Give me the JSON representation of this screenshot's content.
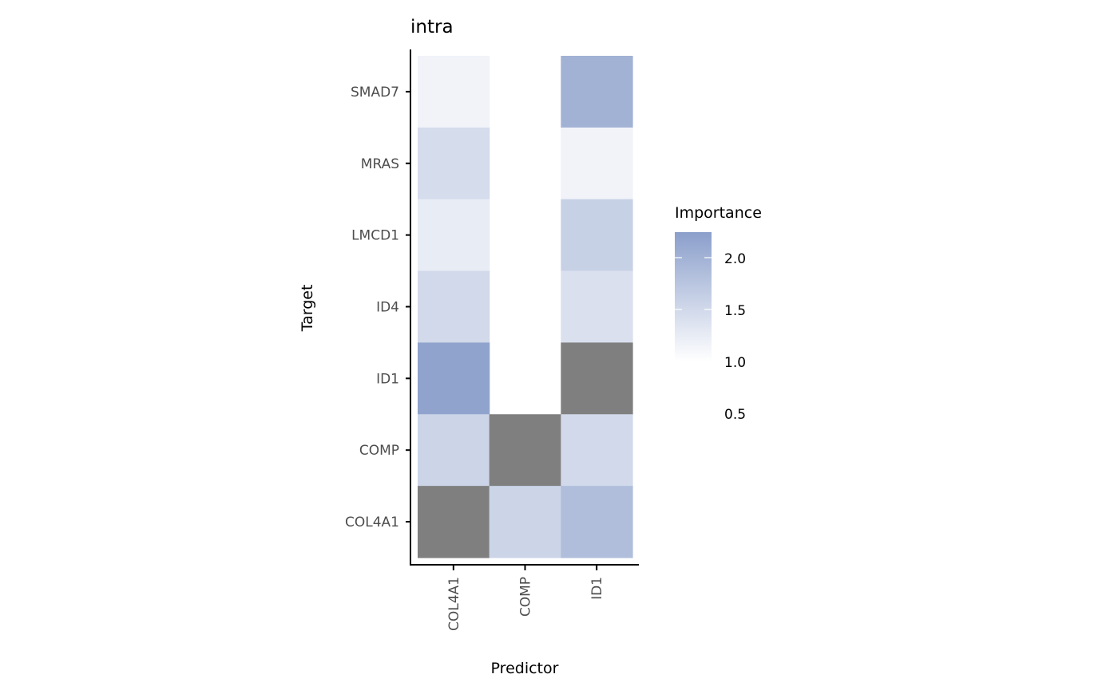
{
  "chart_data": {
    "type": "heatmap",
    "title": "intra",
    "xlabel": "Predictor",
    "ylabel": "Target",
    "x_categories": [
      "COL4A1",
      "COMP",
      "ID1"
    ],
    "y_categories": [
      "COL4A1",
      "COMP",
      "ID1",
      "ID4",
      "LMCD1",
      "MRAS",
      "SMAD7"
    ],
    "cells": [
      {
        "x": "COL4A1",
        "y": "SMAD7",
        "value": 1.15
      },
      {
        "x": "ID1",
        "y": "SMAD7",
        "value": 2.0
      },
      {
        "x": "COL4A1",
        "y": "MRAS",
        "value": 1.45
      },
      {
        "x": "ID1",
        "y": "MRAS",
        "value": 1.15
      },
      {
        "x": "COL4A1",
        "y": "LMCD1",
        "value": 1.25
      },
      {
        "x": "ID1",
        "y": "LMCD1",
        "value": 1.6
      },
      {
        "x": "COL4A1",
        "y": "ID4",
        "value": 1.5
      },
      {
        "x": "ID1",
        "y": "ID4",
        "value": 1.4
      },
      {
        "x": "COL4A1",
        "y": "ID1",
        "value": 2.2
      },
      {
        "x": "ID1",
        "y": "ID1",
        "value": null
      },
      {
        "x": "COL4A1",
        "y": "COMP",
        "value": 1.55
      },
      {
        "x": "COMP",
        "y": "COMP",
        "value": null
      },
      {
        "x": "ID1",
        "y": "COMP",
        "value": 1.5
      },
      {
        "x": "COL4A1",
        "y": "COL4A1",
        "value": null
      },
      {
        "x": "COMP",
        "y": "COL4A1",
        "value": 1.55
      },
      {
        "x": "ID1",
        "y": "COL4A1",
        "value": 1.85
      }
    ],
    "missing_color": "#7f7f7f",
    "legend": {
      "title": "Importance",
      "placement": "right",
      "ticks": [
        "2.0",
        "1.5",
        "1.0",
        "0.5"
      ],
      "range": [
        1.0,
        2.25
      ],
      "low_color": "#ffffff",
      "high_color": "#8b9fcb"
    }
  }
}
